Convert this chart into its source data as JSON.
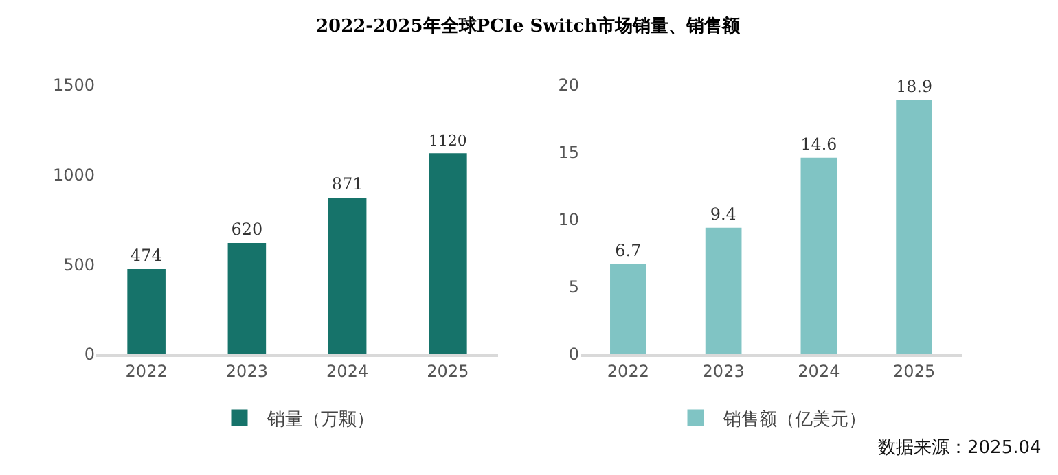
{
  "chart_data": [
    {
      "type": "bar",
      "title": "2022-2025年全球PCIe Switch市场销量、销售额",
      "categories": [
        "2022",
        "2023",
        "2024",
        "2025"
      ],
      "series": [
        {
          "name": "销量（万颗）",
          "color": "#16736a",
          "values": [
            474,
            620,
            871,
            1120
          ]
        }
      ],
      "ylim": [
        0,
        1500
      ],
      "yticks": [
        0,
        500,
        1000,
        1500
      ],
      "data_labels": true,
      "grid": false,
      "legend": "bottom"
    },
    {
      "type": "bar",
      "categories": [
        "2022",
        "2023",
        "2024",
        "2025"
      ],
      "series": [
        {
          "name": "销售额（亿美元）",
          "color": "#80c4c4",
          "values": [
            6.7,
            9.4,
            14.6,
            18.9
          ]
        }
      ],
      "ylim": [
        0,
        20
      ],
      "yticks": [
        0,
        5,
        10,
        15,
        20
      ],
      "data_labels": true,
      "grid": false,
      "legend": "bottom",
      "annotations": [
        "数据来源：2025.04"
      ]
    }
  ]
}
